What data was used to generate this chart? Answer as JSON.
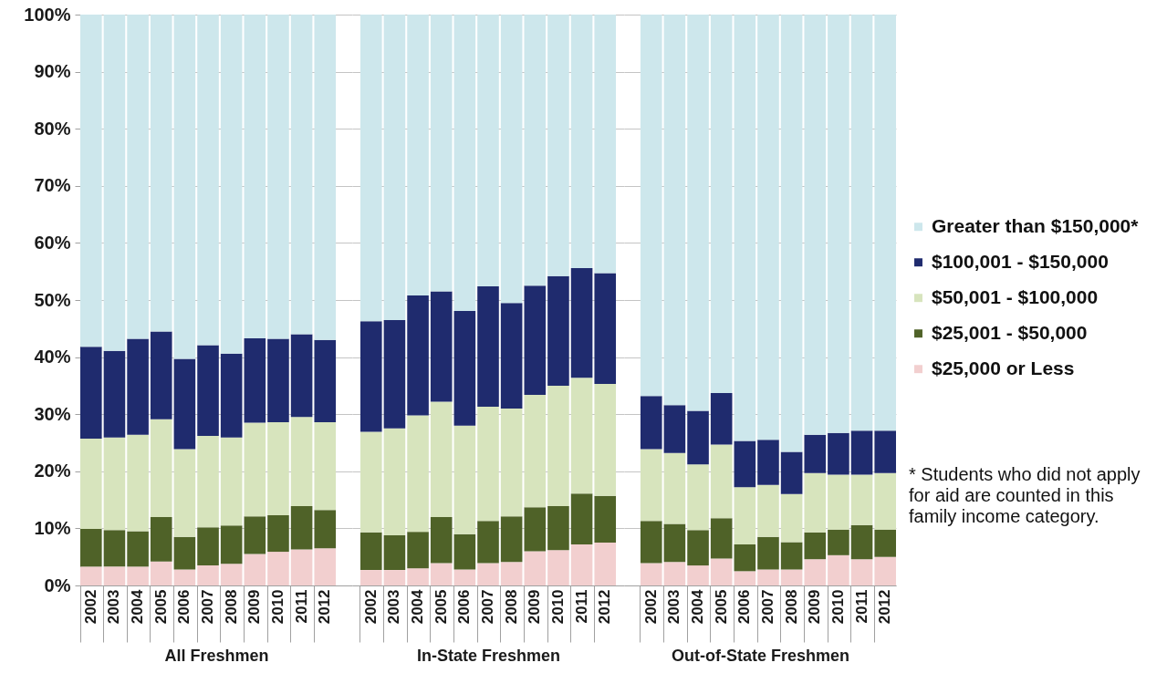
{
  "chart_data": [
    {
      "type": "bar",
      "stacked": true,
      "xlabel": "All Freshmen",
      "categories": [
        "2002",
        "2003",
        "2004",
        "2005",
        "2006",
        "2007",
        "2008",
        "2009",
        "2010",
        "2011",
        "2012"
      ],
      "ylim": [
        0,
        100
      ],
      "yticks": [
        {
          "value": 0,
          "label": "0%"
        },
        {
          "value": 10,
          "label": "10%"
        },
        {
          "value": 20,
          "label": "20%"
        },
        {
          "value": 30,
          "label": "30%"
        },
        {
          "value": 40,
          "label": "40%"
        },
        {
          "value": 50,
          "label": "50%"
        },
        {
          "value": 60,
          "label": "60%"
        },
        {
          "value": 70,
          "label": "70%"
        },
        {
          "value": 80,
          "label": "80%"
        },
        {
          "value": 90,
          "label": "90%"
        },
        {
          "value": 100,
          "label": "100%"
        }
      ],
      "grid": "y",
      "legend": "right",
      "series": [
        {
          "name": "$25,000 or Less",
          "color": "#f2cfcf",
          "values": [
            3.3,
            3.3,
            3.3,
            4.2,
            2.8,
            3.5,
            3.8,
            5.5,
            5.9,
            6.3,
            6.5
          ]
        },
        {
          "name": "$25,001 - $50,000",
          "color": "#4f6228",
          "values": [
            6.6,
            6.4,
            6.2,
            7.8,
            5.7,
            6.7,
            6.7,
            6.6,
            6.4,
            7.6,
            6.7
          ]
        },
        {
          "name": "$50,001 - $100,000",
          "color": "#d7e4bd",
          "values": [
            15.8,
            16.2,
            16.9,
            17.1,
            15.4,
            16.0,
            15.4,
            16.4,
            16.3,
            15.6,
            15.4
          ]
        },
        {
          "name": "$100,001 - $150,000",
          "color": "#1f2b6e",
          "values": [
            16.1,
            15.2,
            16.8,
            15.4,
            15.8,
            15.9,
            14.7,
            14.8,
            14.6,
            14.5,
            14.4
          ]
        },
        {
          "name": "Greater than $150,000*",
          "color": "#cde7ec",
          "values": [
            58.2,
            58.9,
            56.8,
            55.5,
            60.3,
            57.9,
            59.4,
            56.7,
            56.8,
            56.0,
            57.0
          ]
        }
      ]
    },
    {
      "type": "bar",
      "stacked": true,
      "xlabel": "In-State Freshmen",
      "categories": [
        "2002",
        "2003",
        "2004",
        "2005",
        "2006",
        "2007",
        "2008",
        "2009",
        "2010",
        "2011",
        "2012"
      ],
      "ylim": [
        0,
        100
      ],
      "yticks": [
        {
          "value": 0,
          "label": null
        },
        {
          "value": 10,
          "label": null
        },
        {
          "value": 20,
          "label": null
        },
        {
          "value": 30,
          "label": null
        },
        {
          "value": 40,
          "label": null
        },
        {
          "value": 50,
          "label": null
        },
        {
          "value": 60,
          "label": null
        },
        {
          "value": 70,
          "label": null
        },
        {
          "value": 80,
          "label": null
        },
        {
          "value": 90,
          "label": null
        },
        {
          "value": 100,
          "label": null
        }
      ],
      "grid": "y",
      "tick_labels": "x",
      "series": [
        {
          "color": "#f2cfcf",
          "values": [
            2.7,
            2.7,
            3.0,
            3.9,
            2.8,
            3.9,
            4.1,
            6.0,
            6.2,
            7.2,
            7.5
          ]
        },
        {
          "color": "#4f6228",
          "values": [
            6.6,
            6.1,
            6.4,
            8.1,
            6.2,
            7.4,
            8.0,
            7.7,
            7.7,
            8.9,
            8.2
          ]
        },
        {
          "color": "#d7e4bd",
          "values": [
            17.6,
            18.7,
            20.4,
            20.2,
            19.0,
            20.0,
            18.9,
            19.7,
            21.1,
            20.3,
            19.6
          ]
        },
        {
          "color": "#1f2b6e",
          "values": [
            19.4,
            19.0,
            21.0,
            19.3,
            20.1,
            21.1,
            18.5,
            19.1,
            19.2,
            19.2,
            19.4
          ]
        },
        {
          "color": "#cde7ec",
          "values": [
            53.7,
            53.5,
            49.2,
            48.5,
            51.9,
            47.6,
            50.5,
            47.5,
            45.8,
            44.4,
            45.3
          ]
        }
      ]
    },
    {
      "type": "bar",
      "stacked": true,
      "xlabel": "Out-of-State Freshmen",
      "categories": [
        "2002",
        "2003",
        "2004",
        "2005",
        "2006",
        "2007",
        "2008",
        "2009",
        "2010",
        "2011",
        "2012"
      ],
      "ylim": [
        0,
        100
      ],
      "yticks": [
        {
          "value": 0,
          "label": null
        },
        {
          "value": 10,
          "label": null
        },
        {
          "value": 20,
          "label": null
        },
        {
          "value": 30,
          "label": null
        },
        {
          "value": 40,
          "label": null
        },
        {
          "value": 50,
          "label": null
        },
        {
          "value": 60,
          "label": null
        },
        {
          "value": 70,
          "label": null
        },
        {
          "value": 80,
          "label": null
        },
        {
          "value": 90,
          "label": null
        },
        {
          "value": 100,
          "label": null
        }
      ],
      "grid": "y",
      "tick_labels": "x",
      "annotations": [
        "* Students who did not apply for aid are counted in this family income category."
      ],
      "series": [
        {
          "color": "#f2cfcf",
          "values": [
            3.9,
            4.1,
            3.5,
            4.7,
            2.5,
            2.8,
            2.8,
            4.6,
            5.3,
            4.6,
            5.0
          ]
        },
        {
          "color": "#4f6228",
          "values": [
            7.4,
            6.7,
            6.2,
            7.1,
            4.7,
            5.7,
            4.8,
            4.7,
            4.5,
            6.0,
            4.8
          ]
        },
        {
          "color": "#d7e4bd",
          "values": [
            12.6,
            12.4,
            11.5,
            12.9,
            10.0,
            9.1,
            8.4,
            10.4,
            9.6,
            8.8,
            9.9
          ]
        },
        {
          "color": "#1f2b6e",
          "values": [
            9.3,
            8.4,
            9.4,
            9.0,
            8.1,
            7.9,
            7.4,
            6.7,
            7.3,
            7.7,
            7.4
          ]
        },
        {
          "color": "#cde7ec",
          "values": [
            66.8,
            68.4,
            69.4,
            66.3,
            74.7,
            74.5,
            76.6,
            73.6,
            73.3,
            72.9,
            72.9
          ]
        }
      ]
    }
  ]
}
